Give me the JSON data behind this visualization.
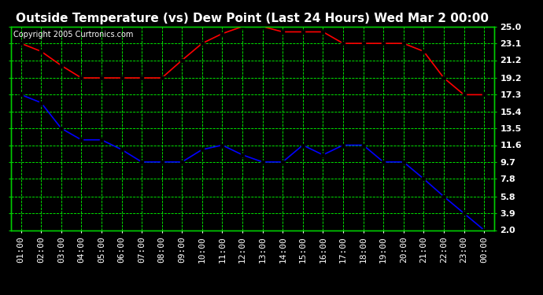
{
  "title": "Outside Temperature (vs) Dew Point (Last 24 Hours) Wed Mar 2 00:00",
  "copyright": "Copyright 2005 Curtronics.com",
  "x_labels": [
    "01:00",
    "02:00",
    "03:00",
    "04:00",
    "05:00",
    "06:00",
    "07:00",
    "08:00",
    "09:00",
    "10:00",
    "11:00",
    "12:00",
    "13:00",
    "14:00",
    "15:00",
    "16:00",
    "17:00",
    "18:00",
    "19:00",
    "20:00",
    "21:00",
    "22:00",
    "23:00",
    "00:00"
  ],
  "temp_values": [
    23.1,
    22.2,
    20.6,
    19.2,
    19.2,
    19.2,
    19.2,
    19.2,
    21.2,
    23.1,
    24.2,
    25.0,
    25.0,
    24.4,
    24.4,
    24.4,
    23.1,
    23.1,
    23.1,
    23.1,
    22.2,
    19.2,
    17.3,
    17.3
  ],
  "dew_values": [
    17.3,
    16.4,
    13.5,
    12.2,
    12.2,
    11.1,
    9.7,
    9.7,
    9.7,
    11.1,
    11.6,
    10.5,
    9.7,
    9.7,
    11.6,
    10.5,
    11.6,
    11.6,
    9.7,
    9.7,
    7.8,
    5.8,
    3.9,
    2.0
  ],
  "temp_color": "#ff0000",
  "dew_color": "#0000ff",
  "bg_color": "#000000",
  "plot_bg_color": "#000000",
  "title_color": "#ffffff",
  "copyright_color": "#ffffff",
  "tick_color": "#ffffff",
  "grid_color": "#00ff00",
  "spine_color": "#00cc00",
  "y_ticks": [
    2.0,
    3.9,
    5.8,
    7.8,
    9.7,
    11.6,
    13.5,
    15.4,
    17.3,
    19.2,
    21.2,
    23.1,
    25.0
  ],
  "ylim": [
    2.0,
    25.0
  ],
  "title_fontsize": 11,
  "copyright_fontsize": 7,
  "tick_fontsize": 8,
  "marker": "s",
  "marker_size": 3,
  "line_width": 1.2
}
